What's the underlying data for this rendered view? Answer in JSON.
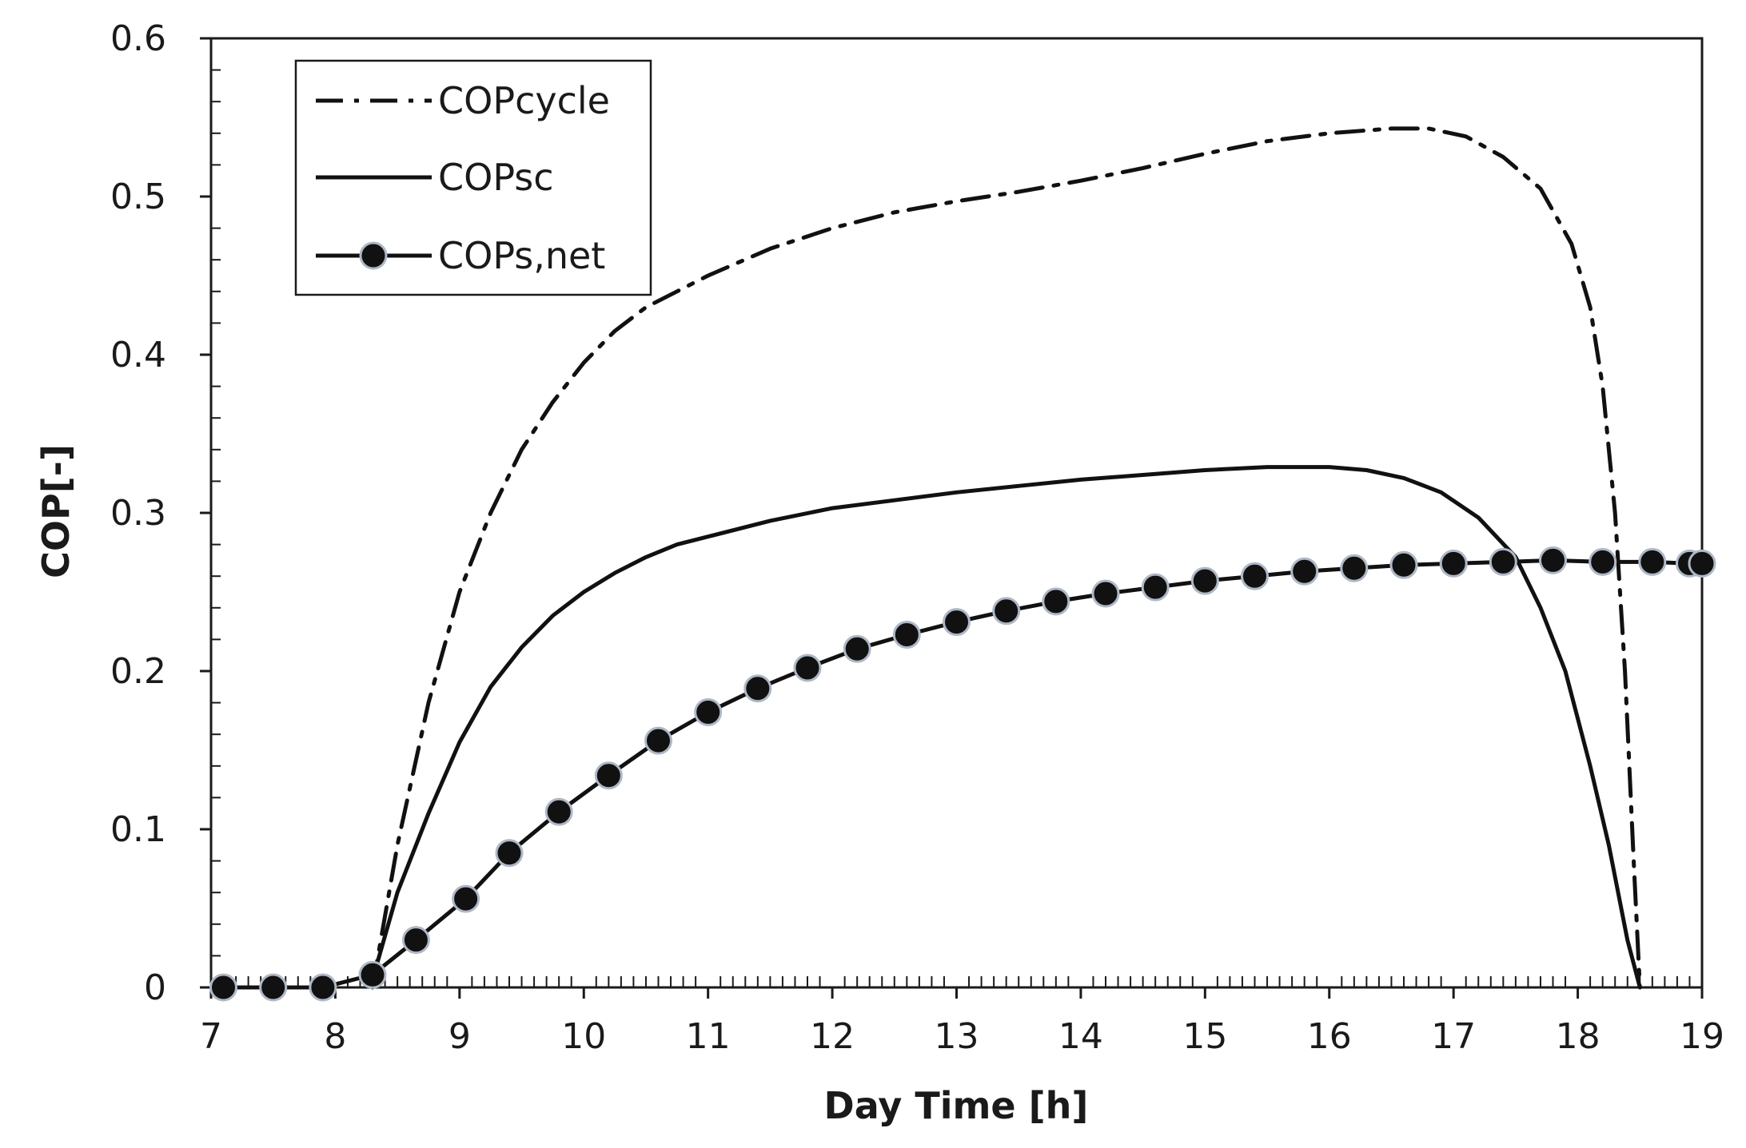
{
  "chart_data": {
    "type": "line",
    "title": "",
    "xlabel": "Day Time [h]",
    "ylabel": "COP[-]",
    "xlim": [
      7,
      19
    ],
    "ylim": [
      0,
      0.6
    ],
    "xticks": [
      "7",
      "8",
      "9",
      "10",
      "11",
      "12",
      "13",
      "14",
      "15",
      "16",
      "17",
      "18",
      "19"
    ],
    "yticks": [
      "0",
      "0.1",
      "0.2",
      "0.3",
      "0.4",
      "0.5",
      "0.6"
    ],
    "grid": false,
    "legend_position": "top-left",
    "series": [
      {
        "name": "COPcycle",
        "style": "dash-dot",
        "marker": "none",
        "x": [
          8.3,
          8.5,
          8.75,
          9.0,
          9.25,
          9.5,
          9.75,
          10.0,
          10.25,
          10.5,
          10.75,
          11.0,
          11.5,
          12.0,
          12.5,
          13.0,
          13.5,
          14.0,
          14.5,
          15.0,
          15.5,
          16.0,
          16.5,
          16.8,
          17.1,
          17.4,
          17.7,
          17.95,
          18.1,
          18.2,
          18.3,
          18.38,
          18.45,
          18.5
        ],
        "values": [
          0.0,
          0.09,
          0.18,
          0.25,
          0.3,
          0.34,
          0.37,
          0.395,
          0.415,
          0.43,
          0.44,
          0.45,
          0.467,
          0.48,
          0.49,
          0.497,
          0.503,
          0.51,
          0.518,
          0.527,
          0.535,
          0.54,
          0.543,
          0.543,
          0.538,
          0.525,
          0.505,
          0.47,
          0.43,
          0.38,
          0.3,
          0.2,
          0.08,
          0.0
        ]
      },
      {
        "name": "COPsc",
        "style": "solid",
        "marker": "none",
        "x": [
          8.3,
          8.5,
          8.75,
          9.0,
          9.25,
          9.5,
          9.75,
          10.0,
          10.25,
          10.5,
          10.75,
          11.0,
          11.5,
          12.0,
          12.5,
          13.0,
          13.5,
          14.0,
          14.5,
          15.0,
          15.5,
          16.0,
          16.3,
          16.6,
          16.9,
          17.2,
          17.5,
          17.7,
          17.9,
          18.1,
          18.25,
          18.4,
          18.5
        ],
        "values": [
          0.005,
          0.06,
          0.11,
          0.155,
          0.19,
          0.215,
          0.235,
          0.25,
          0.262,
          0.272,
          0.28,
          0.285,
          0.295,
          0.303,
          0.308,
          0.313,
          0.317,
          0.321,
          0.324,
          0.327,
          0.329,
          0.329,
          0.327,
          0.322,
          0.313,
          0.297,
          0.272,
          0.24,
          0.2,
          0.14,
          0.09,
          0.03,
          0.0
        ]
      },
      {
        "name": "COPs,net",
        "style": "solid",
        "marker": "circle",
        "x": [
          7.1,
          7.5,
          7.9,
          8.3,
          8.65,
          9.05,
          9.4,
          9.8,
          10.2,
          10.6,
          11.0,
          11.4,
          11.8,
          12.2,
          12.6,
          13.0,
          13.4,
          13.8,
          14.2,
          14.6,
          15.0,
          15.4,
          15.8,
          16.2,
          16.6,
          17.0,
          17.4,
          17.8,
          18.2,
          18.6,
          18.9,
          19.0
        ],
        "values": [
          0.0,
          0.0,
          0.0,
          0.008,
          0.03,
          0.056,
          0.085,
          0.111,
          0.134,
          0.156,
          0.174,
          0.189,
          0.202,
          0.214,
          0.223,
          0.231,
          0.238,
          0.244,
          0.249,
          0.253,
          0.257,
          0.26,
          0.263,
          0.265,
          0.267,
          0.268,
          0.269,
          0.27,
          0.269,
          0.269,
          0.268,
          0.268
        ]
      }
    ]
  }
}
